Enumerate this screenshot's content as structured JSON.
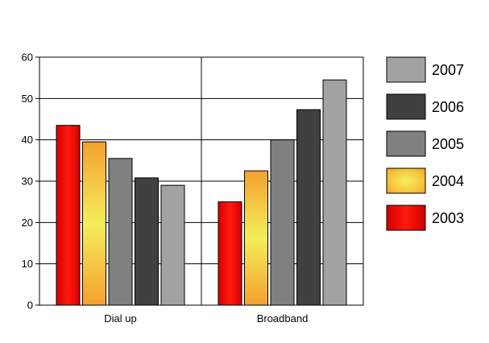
{
  "chart_data": {
    "type": "bar",
    "categories": [
      "Dial up",
      "Broadband"
    ],
    "series": [
      {
        "name": "2003",
        "values": [
          43.5,
          25
        ],
        "fill": "red"
      },
      {
        "name": "2004",
        "values": [
          39.5,
          32.5
        ],
        "fill": "orange"
      },
      {
        "name": "2005",
        "values": [
          35.5,
          40
        ],
        "fill": "#808080"
      },
      {
        "name": "2006",
        "values": [
          30.8,
          47.3
        ],
        "fill": "#404040"
      },
      {
        "name": "2007",
        "values": [
          29,
          54.5
        ],
        "fill": "#a2a2a2"
      }
    ],
    "yticks": [
      "0",
      "10",
      "20",
      "30",
      "40",
      "50",
      "60"
    ],
    "ylim": [
      0,
      60
    ],
    "grid": true,
    "legend_position": "right",
    "legend_order": [
      "2007",
      "2006",
      "2005",
      "2004",
      "2003"
    ]
  }
}
